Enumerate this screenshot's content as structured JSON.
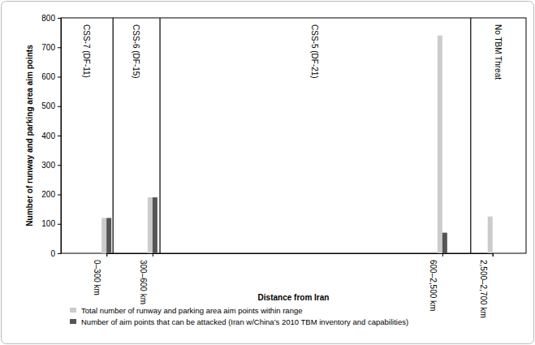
{
  "chart_data": {
    "type": "bar",
    "x_label": "Distance from Iran",
    "y_label": "Number of runway and parking area aim points",
    "categories": [
      "0–300 km",
      "300–600 km",
      "600–2,500 km",
      "2,500–2,700 km"
    ],
    "series": [
      {
        "name": "Total number of runway and parking area aim points within range",
        "color": "#cccccc",
        "values": [
          120,
          190,
          740,
          125
        ]
      },
      {
        "name": "Number of aim points that can be attacked (Iran w/China’s 2010 TBM inventory and capabilities)",
        "color": "#555555",
        "values": [
          120,
          190,
          70,
          null
        ]
      }
    ],
    "annotations": [
      "CSS-7 (DF-11)",
      "CSS-6 (DF-15)",
      "CSS-5 (DF-21)",
      "No TBM Threat"
    ],
    "ylim": [
      0,
      800
    ],
    "yticks": [
      0,
      100,
      200,
      300,
      400,
      500,
      600,
      700,
      800
    ],
    "legend": "bottom"
  }
}
